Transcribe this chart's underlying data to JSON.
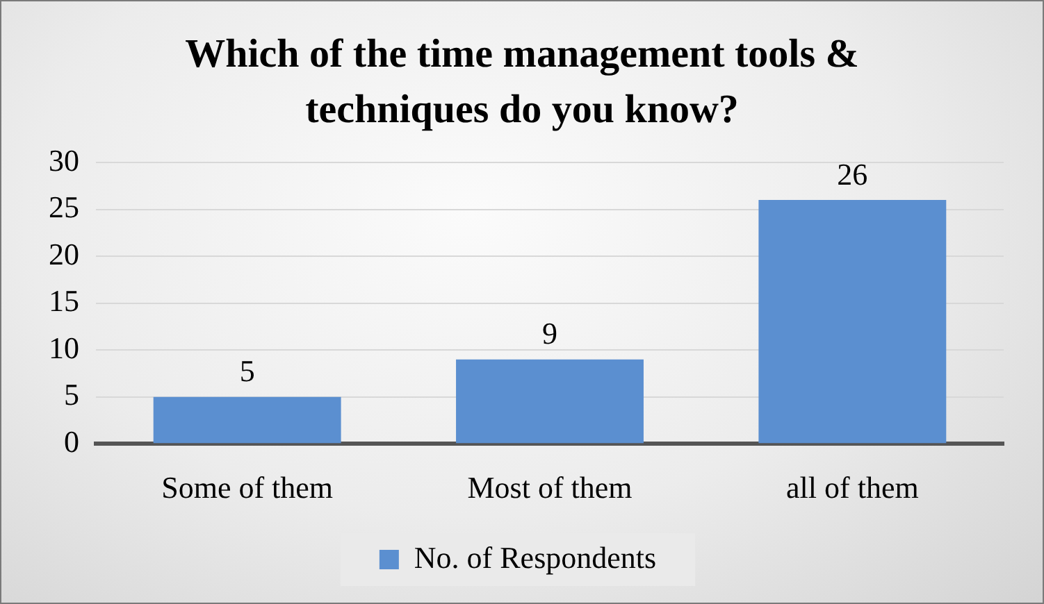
{
  "chart_data": {
    "type": "bar",
    "title": "Which of the time management tools & techniques do you know?",
    "categories": [
      "Some of them",
      "Most of them",
      "all of them"
    ],
    "series": [
      {
        "name": "No. of Respondents",
        "color": "#5b8fd0",
        "values": [
          5,
          9,
          26
        ]
      }
    ],
    "ylim": [
      0,
      30
    ],
    "yticks": [
      0,
      5,
      10,
      15,
      20,
      25,
      30
    ],
    "grid": "y",
    "legend": "bottom",
    "data_labels": true
  }
}
